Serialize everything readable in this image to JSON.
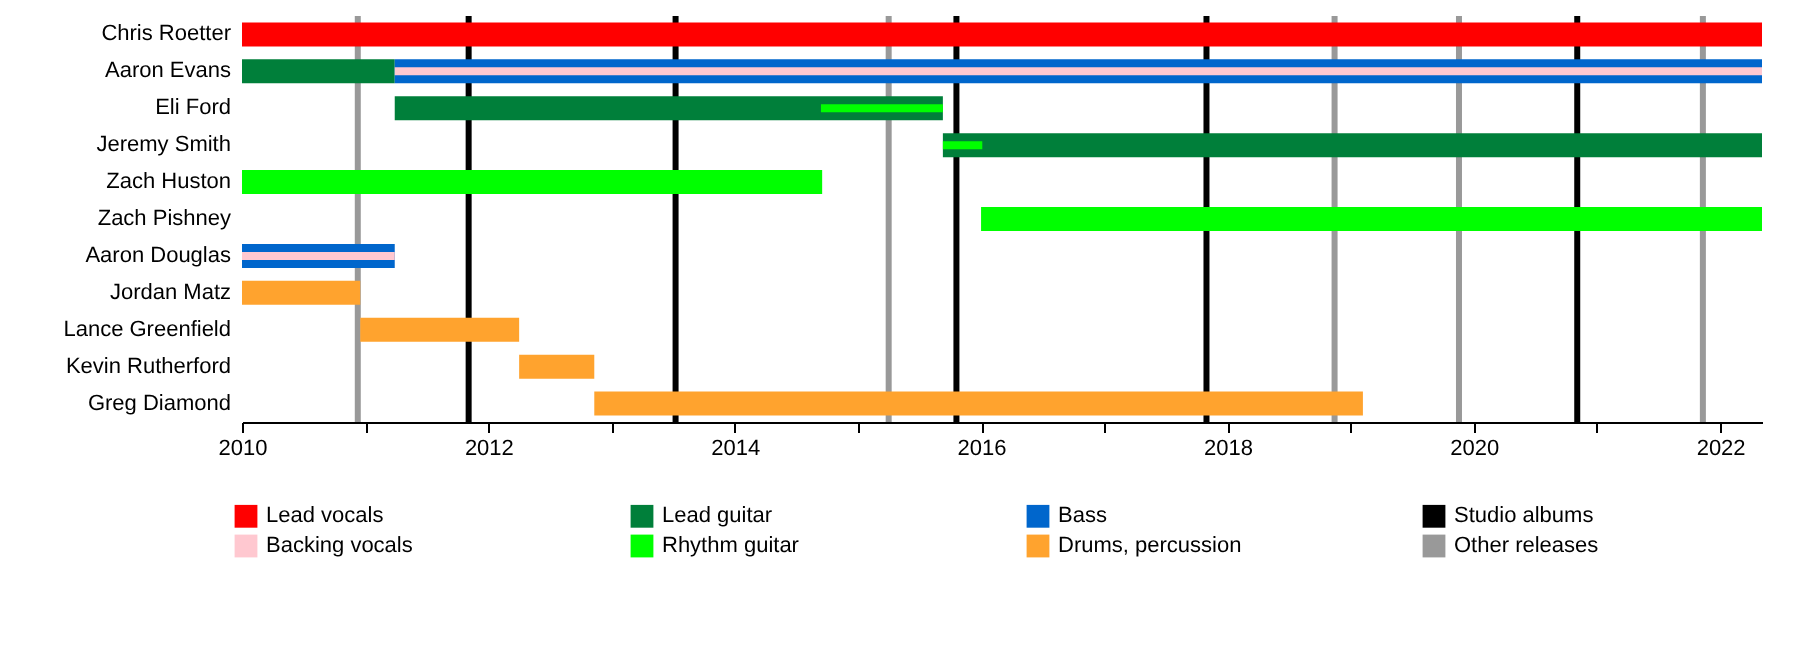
{
  "chart_data": {
    "type": "bar",
    "orientation": "horizontal",
    "legend": "bottom",
    "grid": false,
    "categories": [
      "Chris Roetter",
      "Aaron Evans",
      "Eli Ford",
      "Jeremy Smith",
      "Zach Huston",
      "Zach Pishney",
      "Aaron Douglas",
      "Jordan Matz",
      "Lance Greenfield",
      "Kevin Rutherford",
      "Greg Diamond"
    ],
    "series": [
      {
        "name": "Lead vocals",
        "color": "#ff0000",
        "base": [
          2010,
          null,
          null,
          null,
          null,
          null,
          null,
          null,
          null,
          null,
          null
        ],
        "values": [
          12.34,
          null,
          null,
          null,
          null,
          null,
          null,
          null,
          null,
          null,
          null
        ]
      },
      {
        "name": "Backing vocals",
        "color": "#ffc8d0",
        "base": [
          null,
          2011.24,
          null,
          null,
          null,
          null,
          2010,
          null,
          null,
          null,
          null
        ],
        "values": [
          null,
          11.1,
          null,
          null,
          null,
          null,
          1.24,
          null,
          null,
          null,
          null
        ]
      },
      {
        "name": "Lead guitar",
        "color": "#007f3a",
        "base": [
          null,
          2010,
          2011.24,
          2015.69,
          null,
          null,
          null,
          null,
          null,
          null,
          null
        ],
        "values": [
          null,
          1.24,
          4.45,
          6.65,
          null,
          null,
          null,
          null,
          null,
          null,
          null
        ]
      },
      {
        "name": "Rhythm guitar",
        "color": "#00ff00",
        "base": [
          null,
          null,
          2014.7,
          2015.69,
          2010,
          2016,
          null,
          null,
          null,
          null,
          null
        ],
        "values": [
          null,
          null,
          0.99,
          0.32,
          4.71,
          6.34,
          null,
          null,
          null,
          null,
          null
        ]
      },
      {
        "name": "Bass",
        "color": "#0066cc",
        "base": [
          null,
          2011.24,
          null,
          null,
          null,
          null,
          2010,
          null,
          null,
          null,
          null
        ],
        "values": [
          null,
          11.1,
          null,
          null,
          null,
          null,
          1.24,
          null,
          null,
          null,
          null
        ]
      },
      {
        "name": "Drums, percussion",
        "color": "#ffa32e",
        "base": [
          null,
          null,
          null,
          null,
          null,
          null,
          null,
          2010,
          2010.96,
          2012.25,
          2012.86
        ],
        "values": [
          null,
          null,
          null,
          null,
          null,
          null,
          null,
          0.96,
          1.29,
          0.61,
          6.24
        ]
      }
    ],
    "ref_lines": [
      {
        "axis": "x",
        "value": 2011.84,
        "label": "Studio albums",
        "color": "#000000"
      },
      {
        "axis": "x",
        "value": 2013.52,
        "color": "#000000"
      },
      {
        "axis": "x",
        "value": 2015.8,
        "color": "#000000"
      },
      {
        "axis": "x",
        "value": 2017.83,
        "color": "#000000"
      },
      {
        "axis": "x",
        "value": 2020.84,
        "color": "#000000"
      },
      {
        "axis": "x",
        "value": 2010.94,
        "label": "Other releases",
        "color": "#999999"
      },
      {
        "axis": "x",
        "value": 2015.25,
        "color": "#999999"
      },
      {
        "axis": "x",
        "value": 2018.87,
        "color": "#999999"
      },
      {
        "axis": "x",
        "value": 2019.88,
        "color": "#999999"
      },
      {
        "axis": "x",
        "value": 2021.86,
        "color": "#999999"
      }
    ],
    "xlim": [
      2010,
      2022.34
    ],
    "xticks": [
      2010,
      {
        "value": 2011,
        "label": null
      },
      2012,
      {
        "value": 2013,
        "label": null
      },
      2014,
      {
        "value": 2015,
        "label": null
      },
      2016,
      {
        "value": 2017,
        "label": null
      },
      2018,
      {
        "value": 2019,
        "label": null
      },
      2020,
      {
        "value": 2021,
        "label": null
      },
      2022
    ]
  }
}
